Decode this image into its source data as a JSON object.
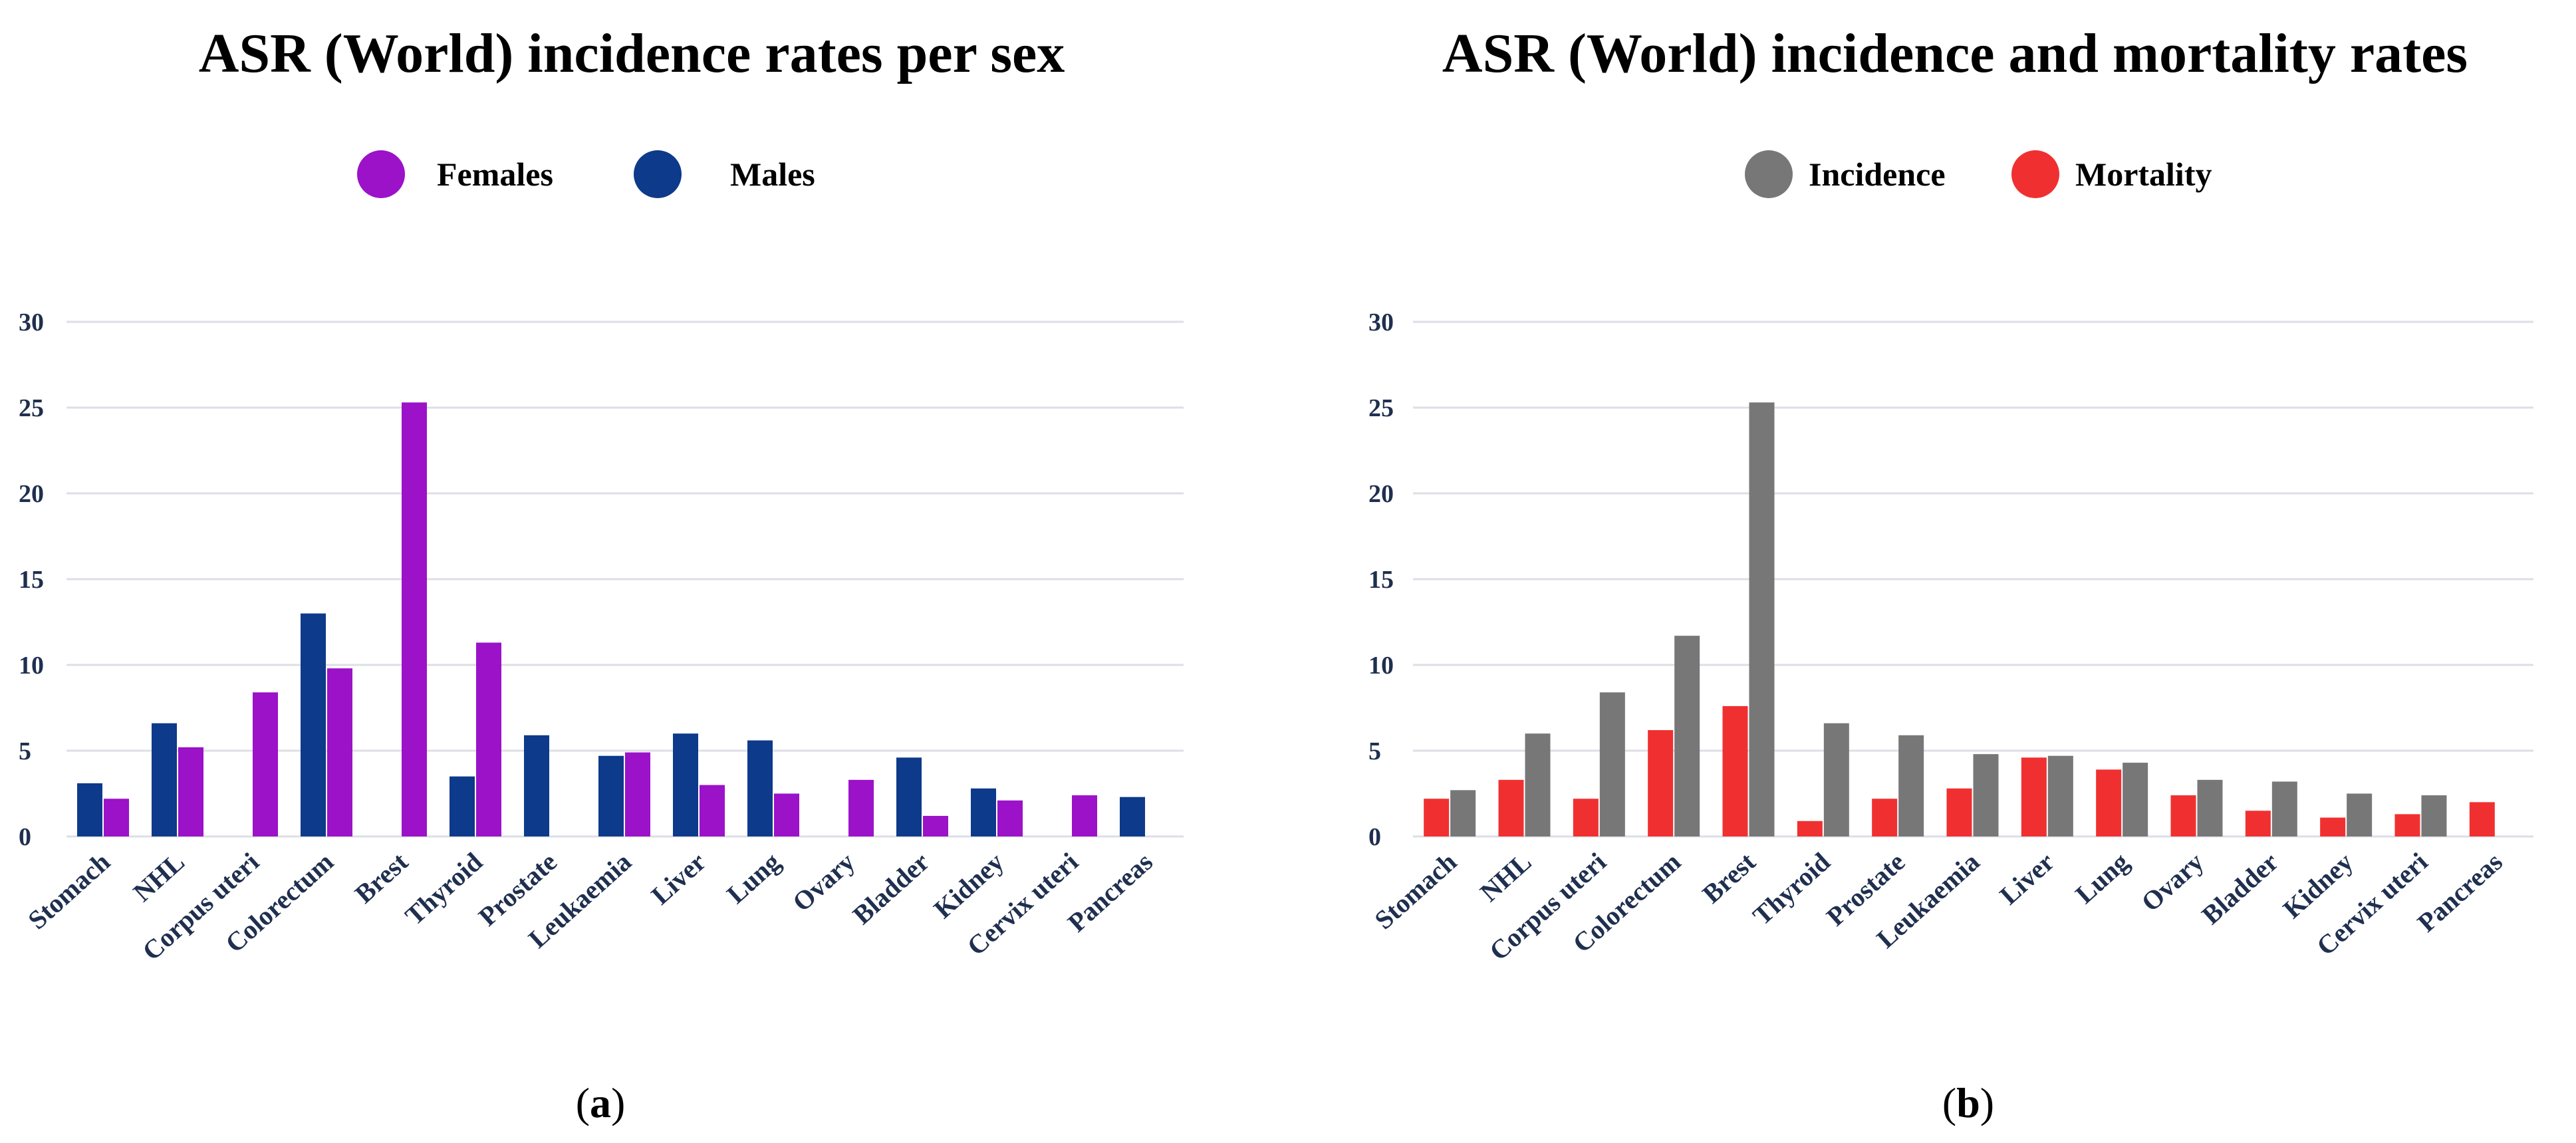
{
  "chart_data": [
    {
      "type": "bar",
      "title": "ASR (World) incidence rates per sex",
      "panel_label": "a",
      "legend_position": "top-center",
      "grid": true,
      "ylim": [
        0,
        30
      ],
      "yticks": [
        0,
        5,
        10,
        15,
        20,
        25,
        30
      ],
      "categories": [
        "Stomach",
        "NHL",
        "Corpus uteri",
        "Colorectum",
        "Brest",
        "Thyroid",
        "Prostate",
        "Leukaemia",
        "Liver",
        "Lung",
        "Ovary",
        "Bladder",
        "Kidney",
        "Cervix uteri",
        "Pancreas"
      ],
      "series": [
        {
          "name": "Males",
          "color": "#0d3a8a",
          "values": [
            3.1,
            6.6,
            null,
            13.0,
            null,
            3.5,
            5.9,
            4.7,
            6.0,
            5.6,
            null,
            4.6,
            2.8,
            null,
            2.3
          ]
        },
        {
          "name": "Females",
          "color": "#9b12c9",
          "values": [
            2.2,
            5.2,
            8.4,
            9.8,
            25.3,
            11.3,
            null,
            4.9,
            3.0,
            2.5,
            3.3,
            1.2,
            2.1,
            2.4,
            null
          ]
        }
      ],
      "legend": [
        {
          "name": "Females",
          "color": "#9b12c9"
        },
        {
          "name": "Males",
          "color": "#0d3a8a"
        }
      ]
    },
    {
      "type": "bar",
      "title": "ASR (World) incidence and mortality rates",
      "panel_label": "b",
      "legend_position": "top-center",
      "grid": true,
      "ylim": [
        0,
        30
      ],
      "yticks": [
        0,
        5,
        10,
        15,
        20,
        25,
        30
      ],
      "categories": [
        "Stomach",
        "NHL",
        "Corpus uteri",
        "Colorectum",
        "Brest",
        "Thyroid",
        "Prostate",
        "Leukaemia",
        "Liver",
        "Lung",
        "Ovary",
        "Bladder",
        "Kidney",
        "Cervix uteri",
        "Pancreas"
      ],
      "series": [
        {
          "name": "Mortality",
          "color": "#f03030",
          "values": [
            2.2,
            3.3,
            2.2,
            6.2,
            7.6,
            0.9,
            2.2,
            2.8,
            4.6,
            3.9,
            2.4,
            1.5,
            1.1,
            1.3,
            2.0
          ]
        },
        {
          "name": "Incidence",
          "color": "#777777",
          "values": [
            2.7,
            6.0,
            8.4,
            11.7,
            25.3,
            6.6,
            5.9,
            4.8,
            4.7,
            4.3,
            3.3,
            3.2,
            2.5,
            2.4,
            null
          ]
        }
      ],
      "legend": [
        {
          "name": "Incidence",
          "color": "#777777"
        },
        {
          "name": "Mortality",
          "color": "#f03030"
        }
      ]
    }
  ]
}
